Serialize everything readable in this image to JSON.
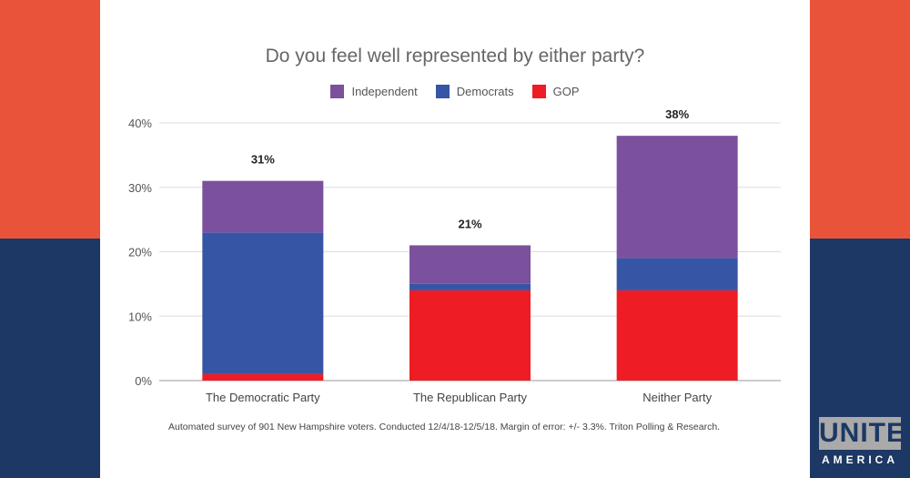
{
  "chart_data": {
    "type": "bar",
    "stacked": true,
    "title": "Do you feel well represented by either party?",
    "categories": [
      "The Democratic Party",
      "The Republican Party",
      "Neither Party"
    ],
    "series": [
      {
        "name": "GOP",
        "color": "#ee1c25",
        "values": [
          1,
          14,
          14
        ]
      },
      {
        "name": "Democrats",
        "color": "#3755a5",
        "values": [
          22,
          1,
          5
        ]
      },
      {
        "name": "Independent",
        "color": "#7b519d",
        "values": [
          8,
          6,
          19
        ]
      }
    ],
    "totals": [
      "31%",
      "21%",
      "38%"
    ],
    "legend_order": [
      "Independent",
      "Democrats",
      "GOP"
    ],
    "yticks": [
      "0%",
      "10%",
      "20%",
      "30%",
      "40%"
    ],
    "ylim": [
      0,
      40
    ],
    "grid": true,
    "legend": "top"
  },
  "footnote": "Automated survey of 901 New Hampshire voters. Conducted 12/4/18-12/5/18. Margin of error: +/- 3.3%. Triton Polling & Research.",
  "logo": {
    "line1": "UNITE",
    "line2": "AMERICA"
  }
}
